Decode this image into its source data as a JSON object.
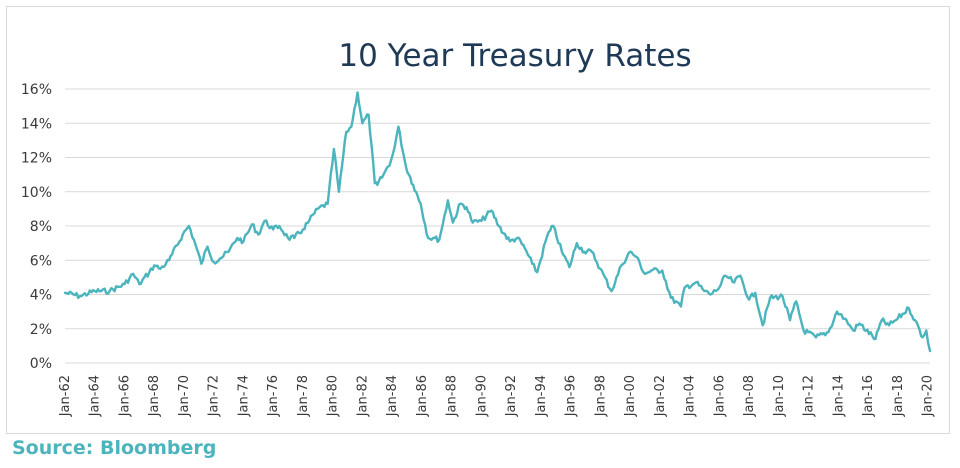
{
  "source": "Source: Bloomberg",
  "chart_data": {
    "type": "line",
    "title": "10 Year Treasury Rates",
    "xlabel": "",
    "ylabel": "",
    "ylim": [
      0,
      16
    ],
    "xlim": [
      "1962-01",
      "2020-03"
    ],
    "grid": "horizontal",
    "legend": "none",
    "line_color": "#4bb4bd",
    "y_ticks": [
      "0%",
      "2%",
      "4%",
      "6%",
      "8%",
      "10%",
      "12%",
      "14%",
      "16%"
    ],
    "y_tick_values": [
      0,
      2,
      4,
      6,
      8,
      10,
      12,
      14,
      16
    ],
    "x_ticks": [
      "Jan-62",
      "Jan-64",
      "Jan-66",
      "Jan-68",
      "Jan-70",
      "Jan-72",
      "Jan-74",
      "Jan-76",
      "Jan-78",
      "Jan-80",
      "Jan-82",
      "Jan-84",
      "Jan-86",
      "Jan-88",
      "Jan-90",
      "Jan-92",
      "Jan-94",
      "Jan-96",
      "Jan-98",
      "Jan-00",
      "Jan-02",
      "Jan-04",
      "Jan-06",
      "Jan-08",
      "Jan-10",
      "Jan-12",
      "Jan-14",
      "Jan-16",
      "Jan-18",
      "Jan-20"
    ],
    "series": [
      {
        "x": [
          "1962-01",
          "1963-01",
          "1964-01",
          "1965-01",
          "1966-01",
          "1966-08",
          "1967-01",
          "1967-09",
          "1968-01",
          "1968-06",
          "1969-01",
          "1969-12",
          "1970-05",
          "1970-09",
          "1971-03",
          "1971-08",
          "1972-01",
          "1972-06",
          "1973-01",
          "1973-08",
          "1974-01",
          "1974-08",
          "1975-01",
          "1975-06",
          "1976-01",
          "1976-06",
          "1977-01",
          "1977-06",
          "1978-01",
          "1978-06",
          "1979-01",
          "1979-09",
          "1980-02",
          "1980-06",
          "1980-12",
          "1981-04",
          "1981-09",
          "1982-01",
          "1982-06",
          "1982-11",
          "1983-01",
          "1983-06",
          "1983-12",
          "1984-03",
          "1984-06",
          "1984-12",
          "1985-06",
          "1985-12",
          "1986-06",
          "1986-10",
          "1987-03",
          "1987-10",
          "1988-02",
          "1988-08",
          "1989-01",
          "1989-06",
          "1990-01",
          "1990-09",
          "1991-03",
          "1991-12",
          "1992-06",
          "1992-12",
          "1993-06",
          "1993-10",
          "1994-06",
          "1994-11",
          "1995-06",
          "1995-12",
          "1996-06",
          "1996-12",
          "1997-06",
          "1998-01",
          "1998-10",
          "1999-06",
          "2000-01",
          "2000-06",
          "2001-01",
          "2001-06",
          "2002-03",
          "2002-10",
          "2003-06",
          "2003-09",
          "2004-06",
          "2005-01",
          "2005-06",
          "2006-01",
          "2006-06",
          "2007-01",
          "2007-06",
          "2008-01",
          "2008-06",
          "2008-12",
          "2009-06",
          "2010-04",
          "2010-10",
          "2011-03",
          "2011-09",
          "2012-07",
          "2013-05",
          "2013-12",
          "2014-06",
          "2015-01",
          "2015-06",
          "2016-07",
          "2016-12",
          "2017-06",
          "2018-01",
          "2018-10",
          "2019-03",
          "2019-09",
          "2019-12",
          "2020-03"
        ],
        "values": [
          4.1,
          3.9,
          4.2,
          4.2,
          4.6,
          5.2,
          4.6,
          5.3,
          5.7,
          5.5,
          6.0,
          7.5,
          8.0,
          7.2,
          5.8,
          6.8,
          5.9,
          6.1,
          6.5,
          7.3,
          7.1,
          8.1,
          7.5,
          8.3,
          7.8,
          8.0,
          7.3,
          7.3,
          7.8,
          8.3,
          9.0,
          9.3,
          12.5,
          10.0,
          13.5,
          13.8,
          15.8,
          14.0,
          14.5,
          10.5,
          10.4,
          11.0,
          11.8,
          12.6,
          13.8,
          11.5,
          10.4,
          9.3,
          7.3,
          7.3,
          7.2,
          9.5,
          8.2,
          9.3,
          9.1,
          8.2,
          8.3,
          8.9,
          8.0,
          7.1,
          7.3,
          6.7,
          5.8,
          5.3,
          7.4,
          8.0,
          6.5,
          5.6,
          7.0,
          6.5,
          6.5,
          5.5,
          4.2,
          5.7,
          6.5,
          6.2,
          5.2,
          5.4,
          5.4,
          3.8,
          3.3,
          4.4,
          4.7,
          4.2,
          4.0,
          4.4,
          5.1,
          4.7,
          5.1,
          3.7,
          4.1,
          2.2,
          3.8,
          3.9,
          2.5,
          3.6,
          1.9,
          1.5,
          1.8,
          3.0,
          2.6,
          1.9,
          2.3,
          1.4,
          2.5,
          2.2,
          2.6,
          3.2,
          2.5,
          1.5,
          1.9,
          0.7
        ]
      }
    ]
  }
}
